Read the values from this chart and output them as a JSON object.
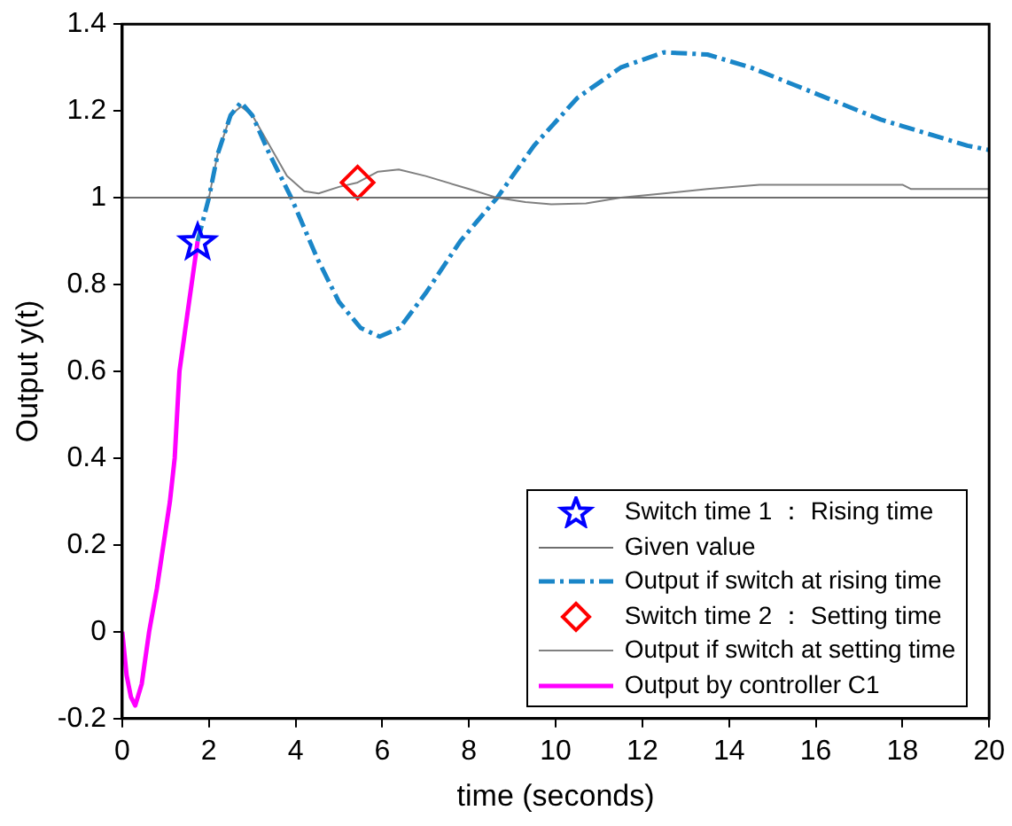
{
  "chart_data": {
    "type": "line",
    "xlabel": "time (seconds)",
    "ylabel": "Output y(t)",
    "xlim": [
      0,
      20
    ],
    "xticks": [
      0,
      2,
      4,
      6,
      8,
      10,
      12,
      14,
      16,
      18,
      20
    ],
    "ylim": [
      -0.2,
      1.4
    ],
    "yticks": [
      -0.2,
      0,
      0.2,
      0.4,
      0.6,
      0.8,
      1,
      1.2,
      1.4
    ],
    "legend": "bottom right",
    "series": [
      {
        "name": "Switch time 1 ： Rising time",
        "type": "scatter",
        "marker": "star",
        "color": "#0000ff",
        "x": [
          1.74
        ],
        "values": [
          0.9
        ]
      },
      {
        "name": "Given value",
        "type": "line",
        "marker": "none",
        "line_style": "solid",
        "color": "#6e6e6e",
        "x": [
          0,
          20
        ],
        "values": [
          1,
          1
        ]
      },
      {
        "name": "Output if switch at rising time",
        "type": "line",
        "marker": "none",
        "line_style": "dashed",
        "color": "#1a86c8",
        "x": [
          1.74,
          2.0,
          2.2,
          2.5,
          2.74,
          3.0,
          3.4,
          3.9,
          4.5,
          5.0,
          5.5,
          5.94,
          6.4,
          7.0,
          7.8,
          8.65,
          9.5,
          10.5,
          11.5,
          12.5,
          13.5,
          14.5,
          15.5,
          16.5,
          17.5,
          18.5,
          19.5,
          20
        ],
        "values": [
          0.9,
          1.0,
          1.1,
          1.19,
          1.22,
          1.19,
          1.1,
          1.0,
          0.86,
          0.76,
          0.7,
          0.68,
          0.7,
          0.78,
          0.9,
          1.0,
          1.12,
          1.23,
          1.3,
          1.335,
          1.33,
          1.3,
          1.26,
          1.22,
          1.18,
          1.15,
          1.12,
          1.11
        ]
      },
      {
        "name": "Switch time 2 ： Setting time",
        "type": "scatter",
        "marker": "diamond",
        "color": "#ff0000",
        "x": [
          5.43
        ],
        "values": [
          1.035
        ]
      },
      {
        "name": "Output if switch at setting time",
        "type": "line",
        "marker": "none",
        "line_style": "solid",
        "color": "#808080",
        "x": [
          2.0,
          2.2,
          2.5,
          2.74,
          3.0,
          3.4,
          3.8,
          4.2,
          4.53,
          5.0,
          5.43,
          5.9,
          6.38,
          7.0,
          8.0,
          8.65,
          9.3,
          9.9,
          10.7,
          11.5,
          12.5,
          13.5,
          14.7,
          18,
          18.2,
          20
        ],
        "values": [
          1.0,
          1.1,
          1.19,
          1.21,
          1.19,
          1.12,
          1.05,
          1.015,
          1.01,
          1.025,
          1.035,
          1.06,
          1.065,
          1.05,
          1.02,
          1.0,
          0.99,
          0.985,
          0.987,
          1.0,
          1.01,
          1.02,
          1.03,
          1.03,
          1.02,
          1.02
        ]
      },
      {
        "name": "Output by controller C1",
        "type": "line",
        "marker": "none",
        "line_style": "solid",
        "color": "#ff00ff",
        "x": [
          0,
          0.1,
          0.2,
          0.3,
          0.45,
          0.62,
          0.8,
          0.95,
          1.1,
          1.21,
          1.32,
          1.5,
          1.74
        ],
        "values": [
          0,
          -0.1,
          -0.15,
          -0.17,
          -0.12,
          0,
          0.1,
          0.2,
          0.3,
          0.4,
          0.6,
          0.73,
          0.9
        ]
      }
    ]
  }
}
